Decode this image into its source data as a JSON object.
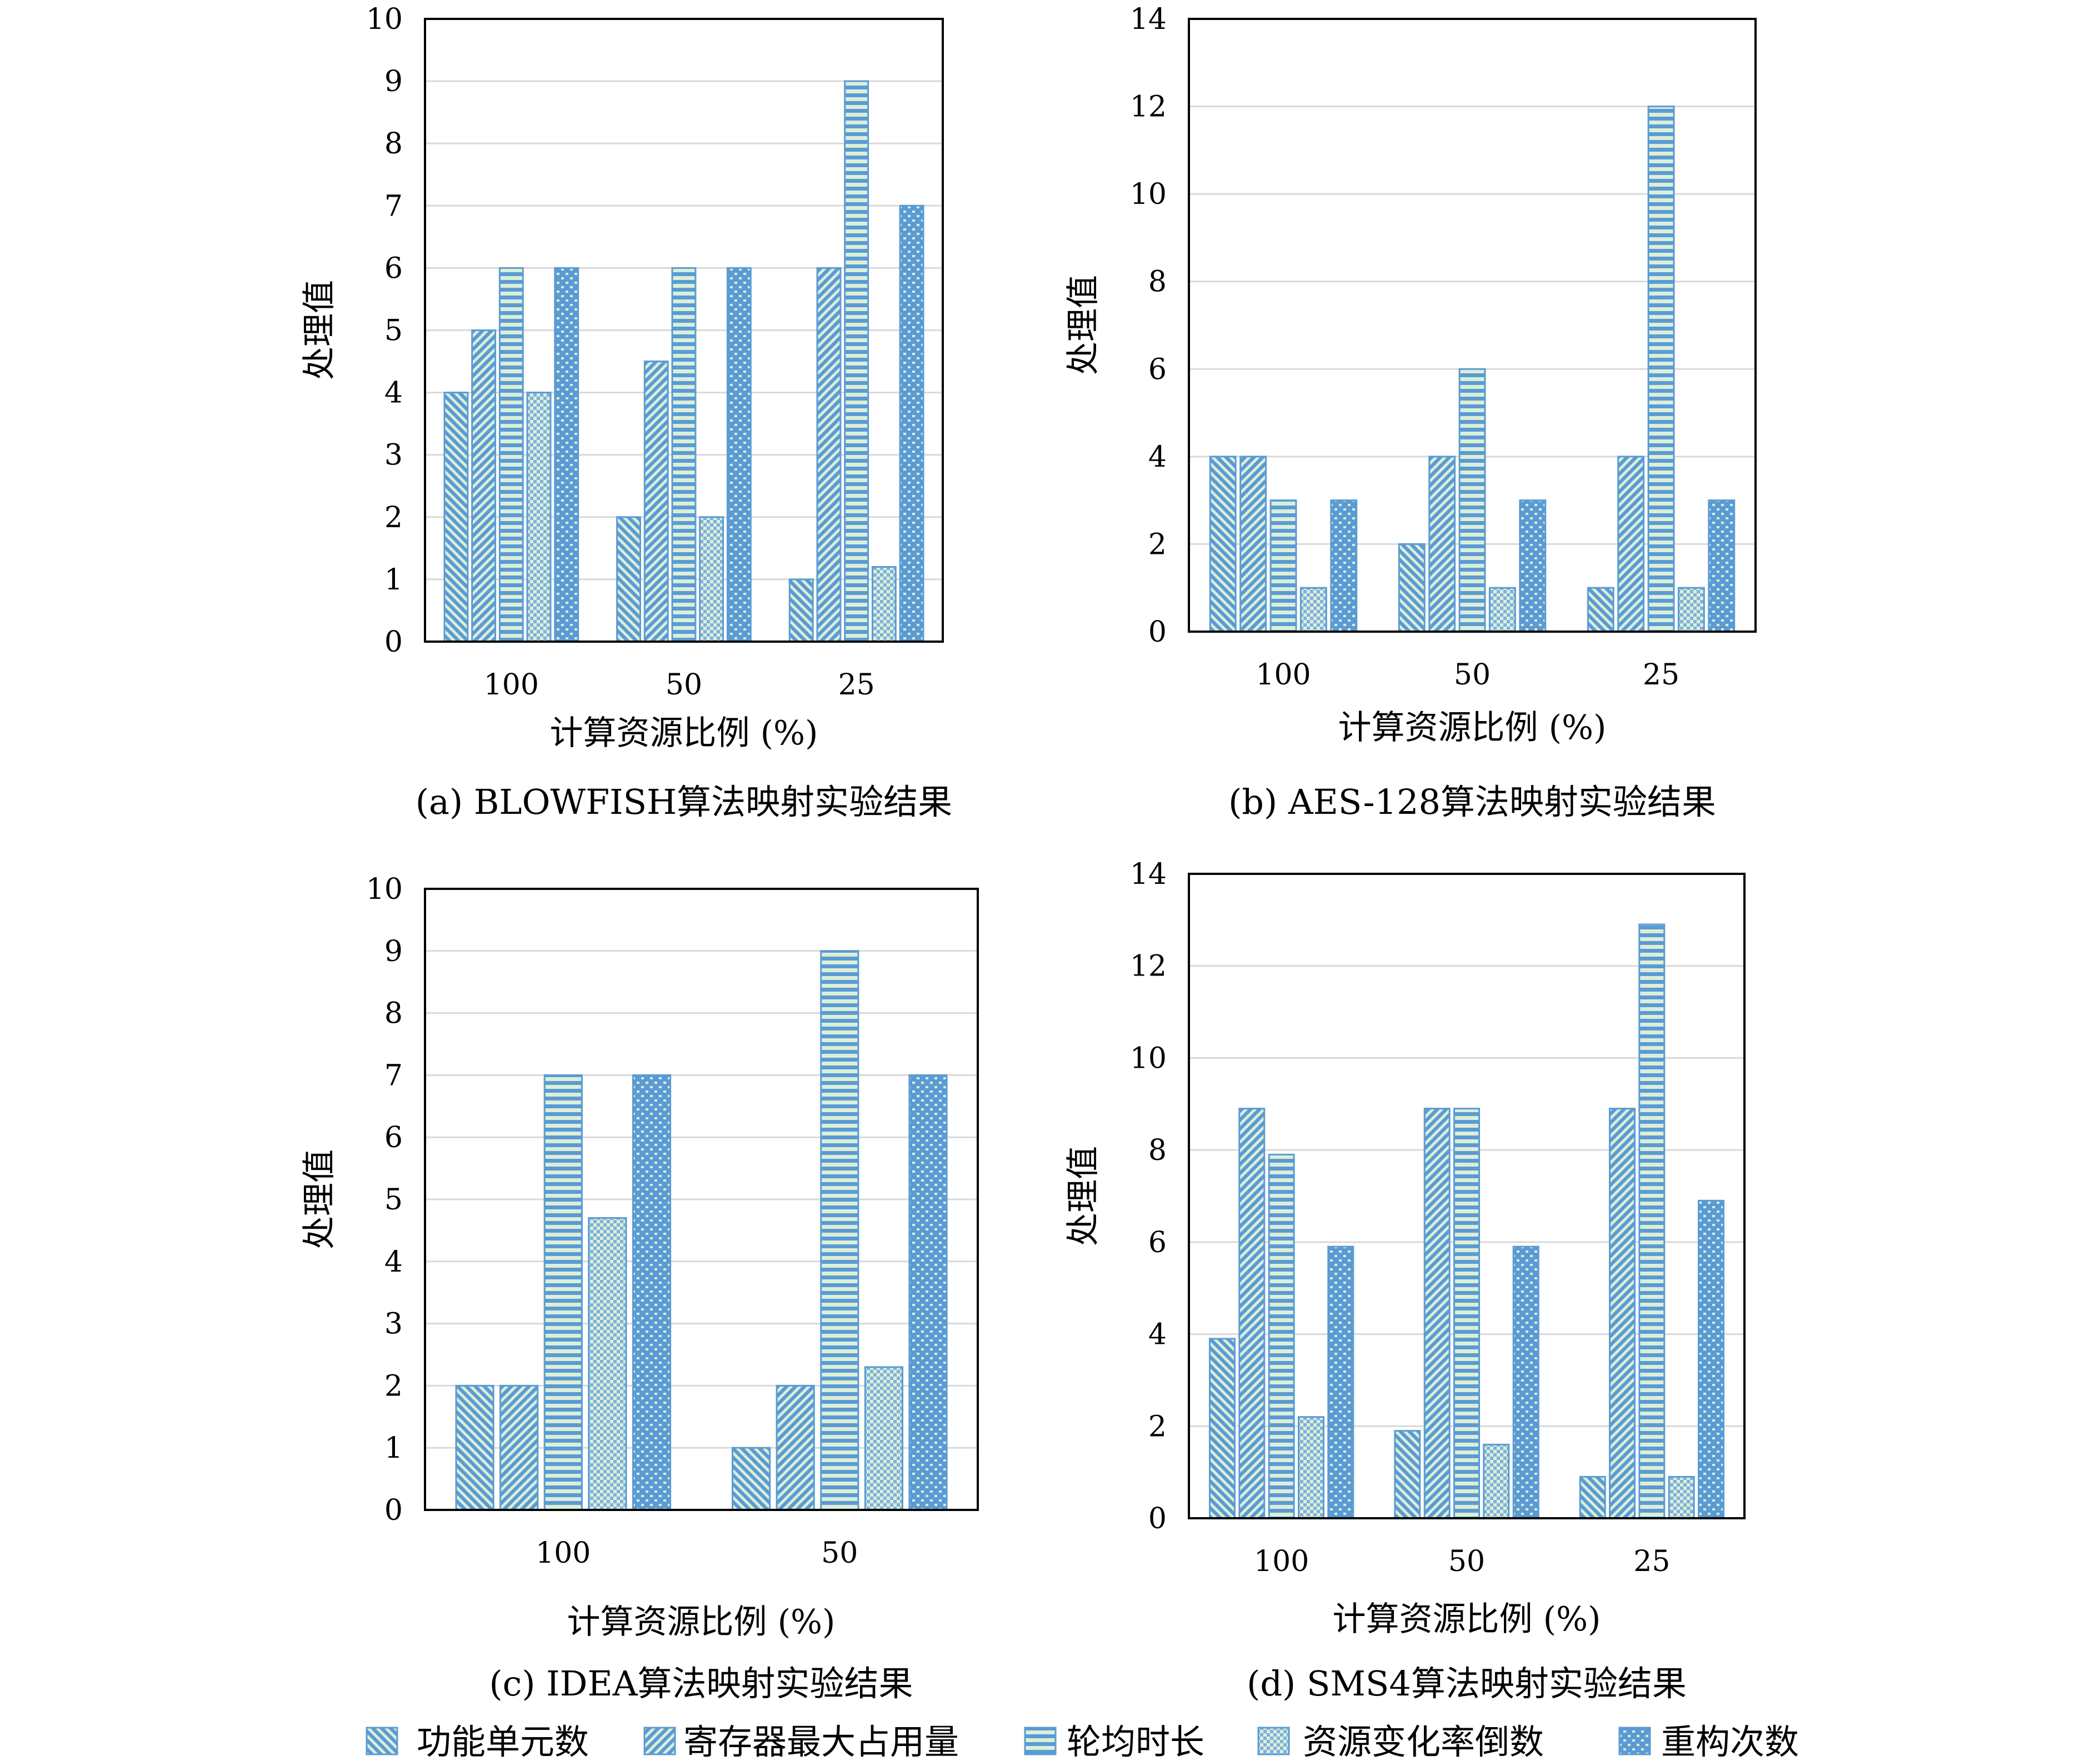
{
  "colors": {
    "bar_fill": "#5b9bd5",
    "bar_light": "#dcefd6",
    "bar_stroke": "#5b9bd5",
    "grid": "#d9d9d9",
    "frame": "#000000"
  },
  "legend": [
    {
      "label": "功能单元数",
      "pattern": "diag-back"
    },
    {
      "label": "寄存器最大占用量",
      "pattern": "diag-fwd"
    },
    {
      "label": "轮均时长",
      "pattern": "hstripe"
    },
    {
      "label": "资源变化率倒数",
      "pattern": "check"
    },
    {
      "label": "重构次数",
      "pattern": "dots"
    }
  ],
  "chart_data": [
    {
      "type": "bar",
      "caption": "(a) BLOWFISH算法映射实验结果",
      "xlabel": "计算资源比例 (%)",
      "ylabel": "处理值",
      "ylim": [
        0,
        10
      ],
      "yticks": [
        0,
        1,
        2,
        3,
        4,
        5,
        6,
        7,
        8,
        9,
        10
      ],
      "categories": [
        "100",
        "50",
        "25"
      ],
      "series": [
        {
          "name": "功能单元数",
          "values": [
            4,
            2,
            1
          ]
        },
        {
          "name": "寄存器最大占用量",
          "values": [
            5,
            4.5,
            6
          ]
        },
        {
          "name": "轮均时长",
          "values": [
            6,
            6,
            9
          ]
        },
        {
          "name": "资源变化率倒数",
          "values": [
            4,
            2,
            1.2
          ]
        },
        {
          "name": "重构次数",
          "values": [
            6,
            6,
            7
          ]
        }
      ]
    },
    {
      "type": "bar",
      "caption": "(b) AES-128算法映射实验结果",
      "xlabel": "计算资源比例 (%)",
      "ylabel": "处理值",
      "ylim": [
        0,
        14
      ],
      "yticks": [
        0,
        2,
        4,
        6,
        8,
        10,
        12,
        14
      ],
      "categories": [
        "100",
        "50",
        "25"
      ],
      "series": [
        {
          "name": "功能单元数",
          "values": [
            4,
            2,
            1
          ]
        },
        {
          "name": "寄存器最大占用量",
          "values": [
            4,
            4,
            4
          ]
        },
        {
          "name": "轮均时长",
          "values": [
            3,
            6,
            12
          ]
        },
        {
          "name": "资源变化率倒数",
          "values": [
            1,
            1,
            1
          ]
        },
        {
          "name": "重构次数",
          "values": [
            3,
            3,
            3
          ]
        }
      ]
    },
    {
      "type": "bar",
      "caption": "(c) IDEA算法映射实验结果",
      "xlabel": "计算资源比例 (%)",
      "ylabel": "处理值",
      "ylim": [
        0,
        10
      ],
      "yticks": [
        0,
        1,
        2,
        3,
        4,
        5,
        6,
        7,
        8,
        9,
        10
      ],
      "categories": [
        "100",
        "50"
      ],
      "series": [
        {
          "name": "功能单元数",
          "values": [
            2,
            1
          ]
        },
        {
          "name": "寄存器最大占用量",
          "values": [
            2,
            2
          ]
        },
        {
          "name": "轮均时长",
          "values": [
            7,
            9
          ]
        },
        {
          "name": "资源变化率倒数",
          "values": [
            4.7,
            2.3
          ]
        },
        {
          "name": "重构次数",
          "values": [
            7,
            7
          ]
        }
      ]
    },
    {
      "type": "bar",
      "caption": "(d) SMS4算法映射实验结果",
      "xlabel": "计算资源比例 (%)",
      "ylabel": "处理值",
      "ylim": [
        0,
        14
      ],
      "yticks": [
        0,
        2,
        4,
        6,
        8,
        10,
        12,
        14
      ],
      "categories": [
        "100",
        "50",
        "25"
      ],
      "series": [
        {
          "name": "功能单元数",
          "values": [
            3.9,
            1.9,
            0.9
          ]
        },
        {
          "name": "寄存器最大占用量",
          "values": [
            8.9,
            8.9,
            8.9
          ]
        },
        {
          "name": "轮均时长",
          "values": [
            7.9,
            8.9,
            12.9
          ]
        },
        {
          "name": "资源变化率倒数",
          "values": [
            2.2,
            1.6,
            0.9
          ]
        },
        {
          "name": "重构次数",
          "values": [
            5.9,
            5.9,
            6.9
          ]
        }
      ]
    }
  ]
}
